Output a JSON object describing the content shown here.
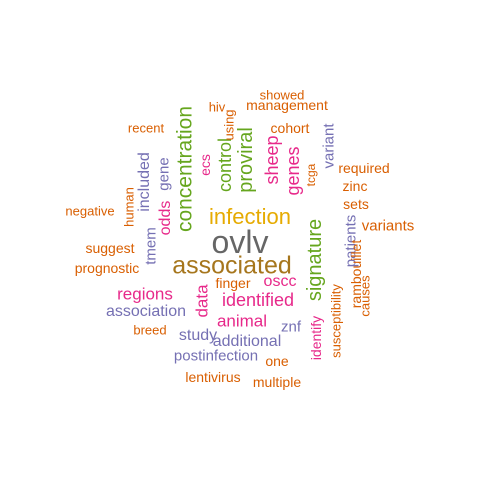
{
  "palette": {
    "orange": "#d95f02",
    "purple": "#7570b3",
    "magenta": "#e7298a",
    "green": "#66a61e",
    "gold": "#e6ab02",
    "brown": "#a6761d",
    "gray": "#666666"
  },
  "words": [
    {
      "text": "ovlv",
      "color": "#666666",
      "vertical": false
    },
    {
      "text": "associated",
      "color": "#a6761d",
      "vertical": false
    },
    {
      "text": "infection",
      "color": "#e6ab02",
      "vertical": false
    },
    {
      "text": "concentration",
      "color": "#66a61e",
      "vertical": true
    },
    {
      "text": "signature",
      "color": "#66a61e",
      "vertical": true
    },
    {
      "text": "proviral",
      "color": "#66a61e",
      "vertical": true
    },
    {
      "text": "control",
      "color": "#66a61e",
      "vertical": true
    },
    {
      "text": "sheep",
      "color": "#e7298a",
      "vertical": true
    },
    {
      "text": "genes",
      "color": "#e7298a",
      "vertical": true
    },
    {
      "text": "identified",
      "color": "#e7298a",
      "vertical": false
    },
    {
      "text": "regions",
      "color": "#e7298a",
      "vertical": false
    },
    {
      "text": "animal",
      "color": "#e7298a",
      "vertical": false
    },
    {
      "text": "oscc",
      "color": "#e7298a",
      "vertical": false
    },
    {
      "text": "data",
      "color": "#e7298a",
      "vertical": true
    },
    {
      "text": "odds",
      "color": "#e7298a",
      "vertical": true
    },
    {
      "text": "ecs",
      "color": "#e7298a",
      "vertical": true
    },
    {
      "text": "identify",
      "color": "#e7298a",
      "vertical": true
    },
    {
      "text": "association",
      "color": "#7570b3",
      "vertical": false
    },
    {
      "text": "additional",
      "color": "#7570b3",
      "vertical": false
    },
    {
      "text": "postinfection",
      "color": "#7570b3",
      "vertical": false
    },
    {
      "text": "study",
      "color": "#7570b3",
      "vertical": false
    },
    {
      "text": "znf",
      "color": "#7570b3",
      "vertical": false
    },
    {
      "text": "included",
      "color": "#7570b3",
      "vertical": true
    },
    {
      "text": "gene",
      "color": "#7570b3",
      "vertical": true
    },
    {
      "text": "tmem",
      "color": "#7570b3",
      "vertical": true
    },
    {
      "text": "patients",
      "color": "#7570b3",
      "vertical": true
    },
    {
      "text": "variant",
      "color": "#7570b3",
      "vertical": true
    },
    {
      "text": "susceptibility",
      "color": "#d95f02",
      "vertical": true
    },
    {
      "text": "rambouillet",
      "color": "#d95f02",
      "vertical": true
    },
    {
      "text": "causes",
      "color": "#d95f02",
      "vertical": true
    },
    {
      "text": "tcga",
      "color": "#d95f02",
      "vertical": true
    },
    {
      "text": "human",
      "color": "#d95f02",
      "vertical": true
    },
    {
      "text": "using",
      "color": "#d95f02",
      "vertical": true
    },
    {
      "text": "management",
      "color": "#d95f02",
      "vertical": false
    },
    {
      "text": "showed",
      "color": "#d95f02",
      "vertical": false
    },
    {
      "text": "hiv",
      "color": "#d95f02",
      "vertical": false
    },
    {
      "text": "recent",
      "color": "#d95f02",
      "vertical": false
    },
    {
      "text": "cohort",
      "color": "#d95f02",
      "vertical": false
    },
    {
      "text": "required",
      "color": "#d95f02",
      "vertical": false
    },
    {
      "text": "zinc",
      "color": "#d95f02",
      "vertical": false
    },
    {
      "text": "sets",
      "color": "#d95f02",
      "vertical": false
    },
    {
      "text": "variants",
      "color": "#d95f02",
      "vertical": false
    },
    {
      "text": "negative",
      "color": "#d95f02",
      "vertical": false
    },
    {
      "text": "suggest",
      "color": "#d95f02",
      "vertical": false
    },
    {
      "text": "prognostic",
      "color": "#d95f02",
      "vertical": false
    },
    {
      "text": "finger",
      "color": "#d95f02",
      "vertical": false
    },
    {
      "text": "breed",
      "color": "#d95f02",
      "vertical": false
    },
    {
      "text": "one",
      "color": "#d95f02",
      "vertical": false
    },
    {
      "text": "lentivirus",
      "color": "#d95f02",
      "vertical": false
    },
    {
      "text": "multiple",
      "color": "#d95f02",
      "vertical": false
    }
  ]
}
